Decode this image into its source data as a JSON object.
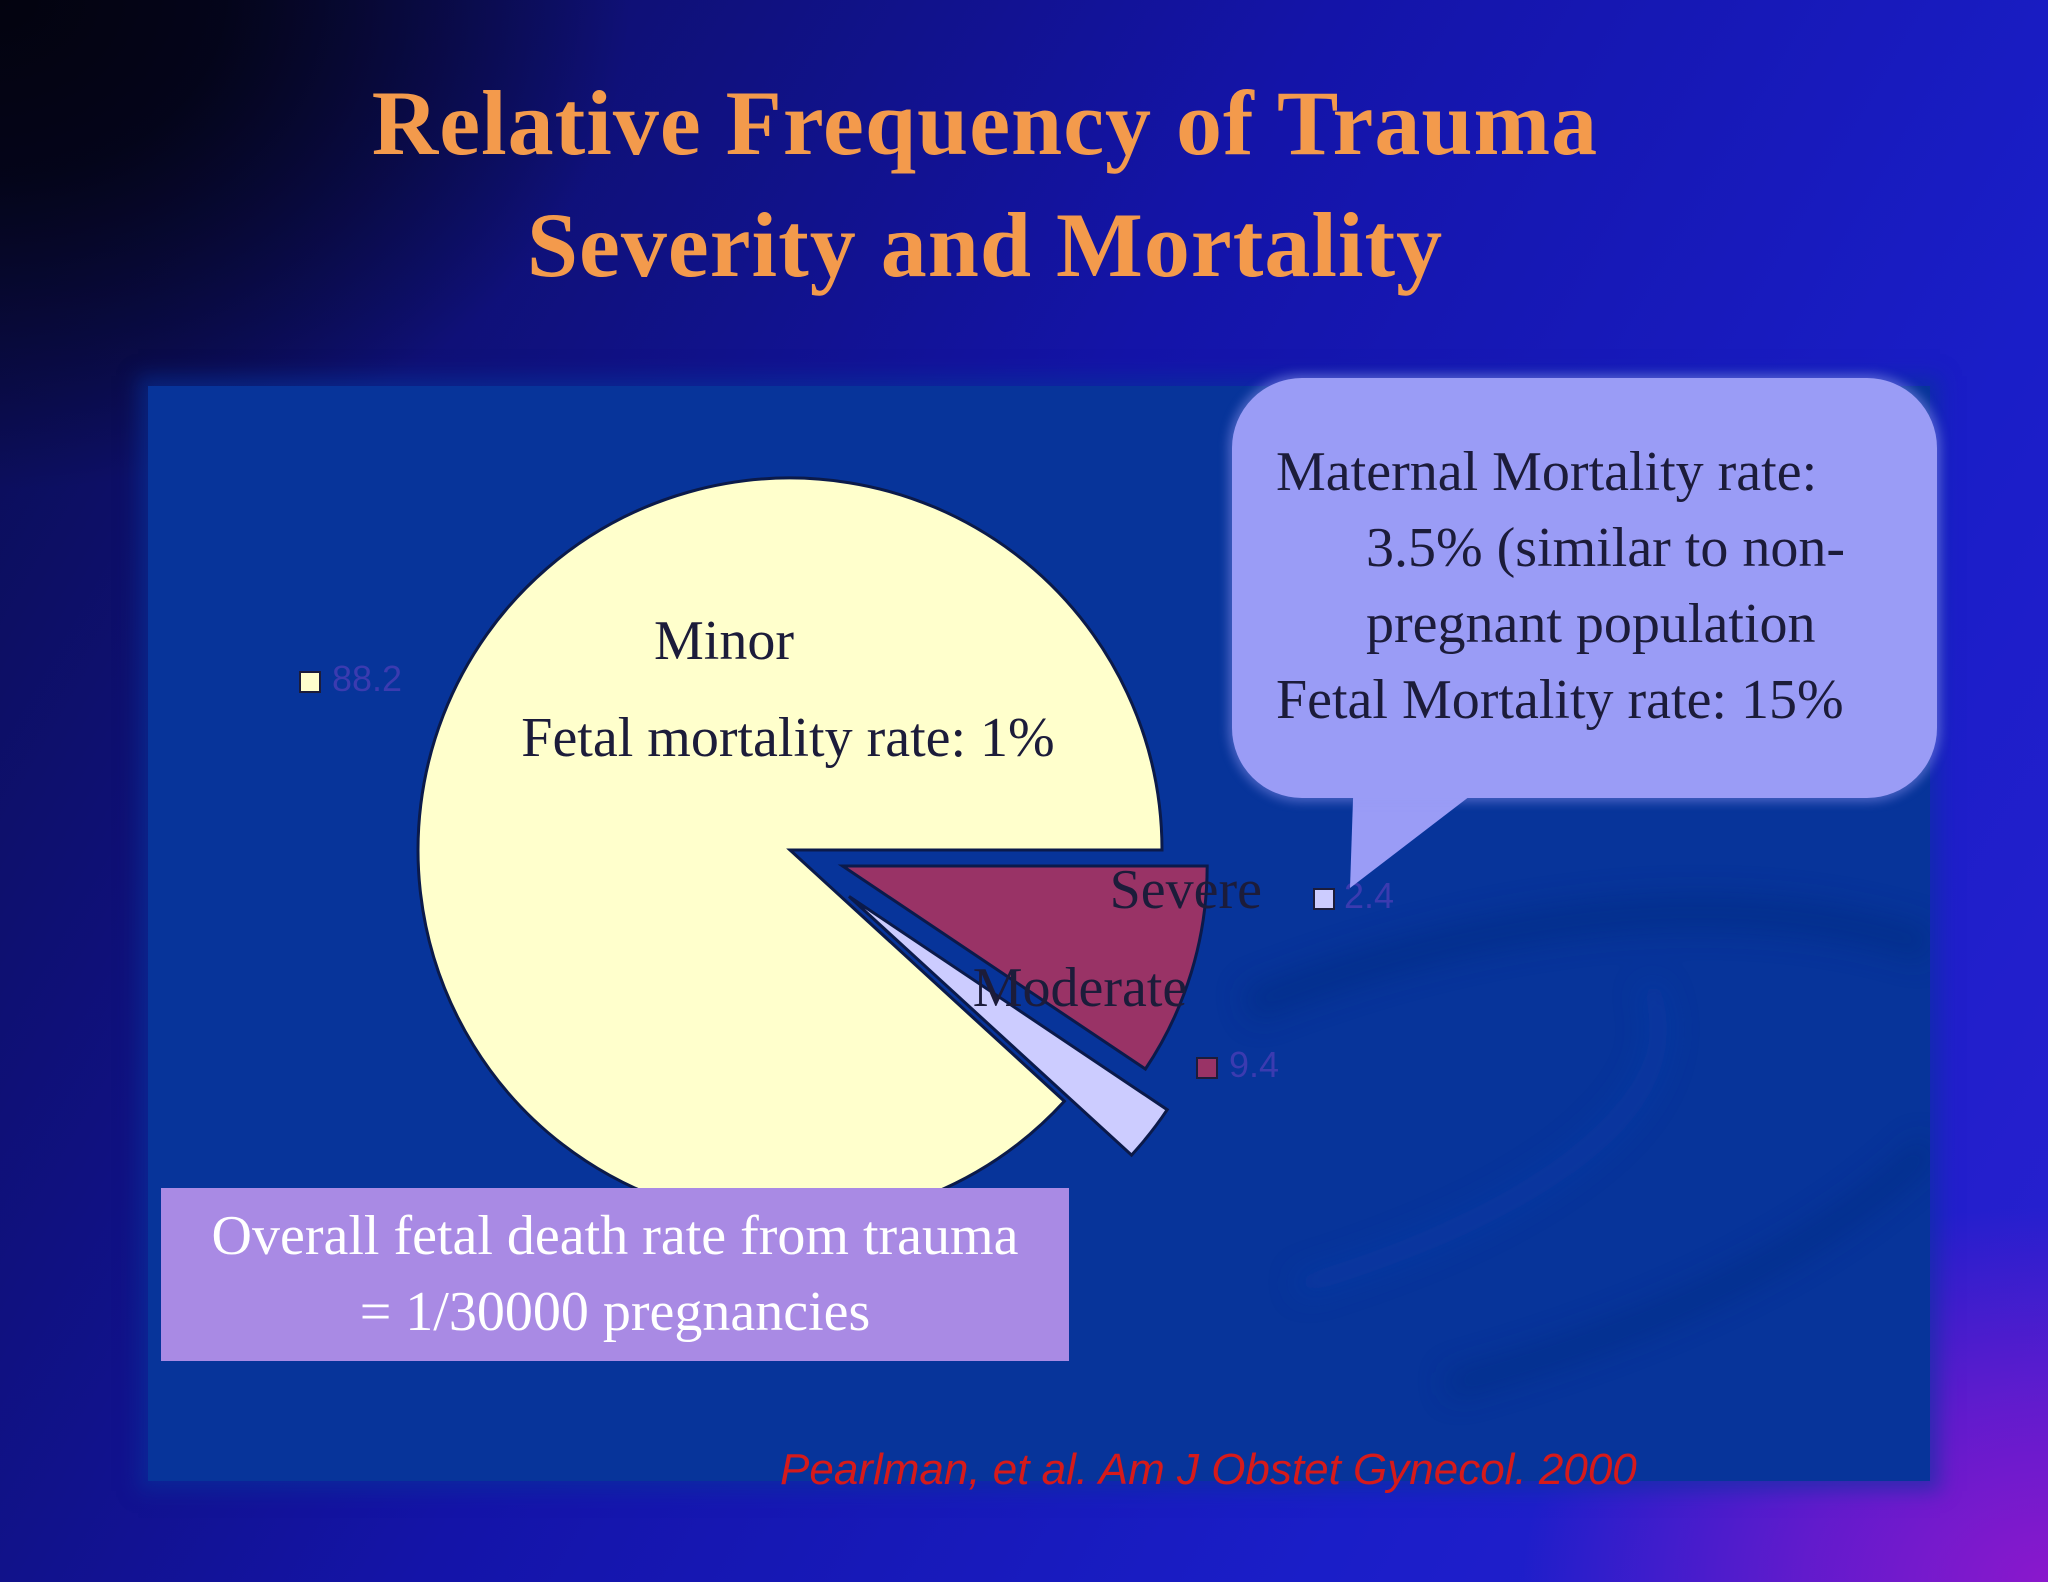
{
  "title": {
    "line1": "Relative Frequency of Trauma",
    "line2": "Severity and Mortality"
  },
  "chart_data": {
    "type": "pie",
    "title": "Relative Frequency of Trauma Severity and Mortality",
    "exploded": true,
    "slices": [
      {
        "name": "Minor",
        "value": 88.2,
        "value_label": "88.2",
        "sublabel": "Fetal mortality rate: 1%",
        "color": "#ffffcc"
      },
      {
        "name": "Moderate",
        "value": 9.4,
        "value_label": "9.4",
        "color": "#993366"
      },
      {
        "name": "Severe",
        "value": 2.4,
        "value_label": "2.4",
        "color": "#ccccff"
      }
    ]
  },
  "callout": {
    "line1": "Maternal Mortality rate:",
    "line2": "3.5% (similar to non-",
    "line3": "pregnant population",
    "line4": "Fetal Mortality rate: 15%"
  },
  "overall": {
    "line1": "Overall fetal death rate from trauma",
    "line2": "= 1/30000 pregnancies"
  },
  "citation": "Pearlman, et al. Am J Obstet Gynecol. 2000",
  "colors": {
    "title": "#f39a4c",
    "panel": "#07349a",
    "callout": "#9a9cf6",
    "overall_box": "#a98ae4",
    "citation": "#d61a1a"
  }
}
